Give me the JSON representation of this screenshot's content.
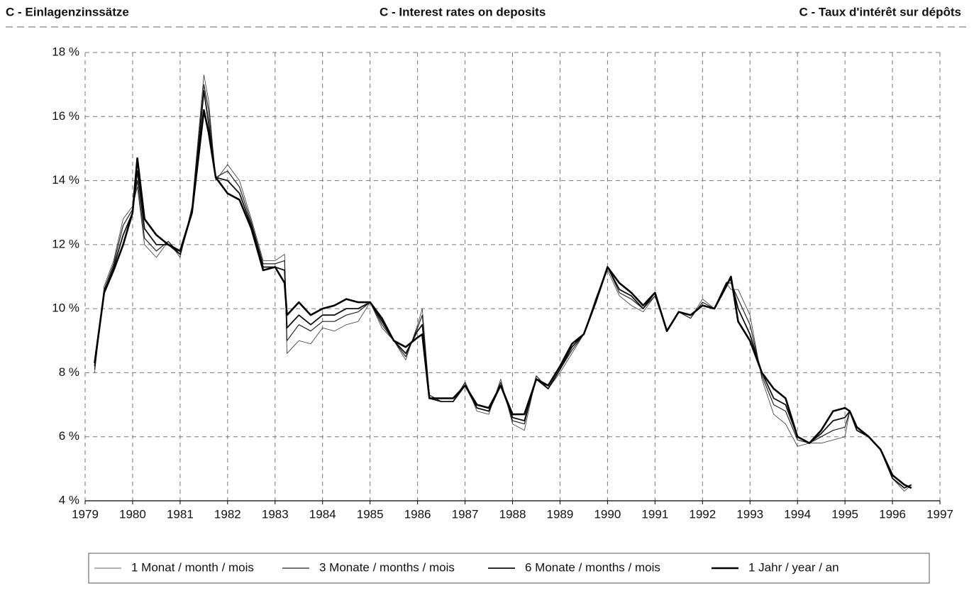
{
  "chart_data": {
    "type": "line",
    "titles": [
      "C - Einlagenzinssätze",
      "C - Interest rates on deposits",
      "C - Taux d'intérêt sur dépôts"
    ],
    "x": [
      1979.2,
      1979.4,
      1979.6,
      1979.8,
      1980.0,
      1980.1,
      1980.25,
      1980.5,
      1980.75,
      1981.0,
      1981.25,
      1981.5,
      1981.6,
      1981.75,
      1982.0,
      1982.25,
      1982.5,
      1982.75,
      1983.0,
      1983.2,
      1983.25,
      1983.5,
      1983.75,
      1984.0,
      1984.25,
      1984.5,
      1984.75,
      1985.0,
      1985.25,
      1985.5,
      1985.75,
      1986.0,
      1986.1,
      1986.25,
      1986.5,
      1986.75,
      1987.0,
      1987.25,
      1987.5,
      1987.75,
      1988.0,
      1988.25,
      1988.5,
      1988.75,
      1989.0,
      1989.25,
      1989.5,
      1989.75,
      1990.0,
      1990.25,
      1990.5,
      1990.75,
      1991.0,
      1991.25,
      1991.5,
      1991.75,
      1992.0,
      1992.25,
      1992.5,
      1992.6,
      1992.75,
      1993.0,
      1993.25,
      1993.5,
      1993.75,
      1994.0,
      1994.25,
      1994.5,
      1994.75,
      1995.0,
      1995.1,
      1995.25,
      1995.5,
      1995.75,
      1996.0,
      1996.25,
      1996.4
    ],
    "series": [
      {
        "name": "1 Monat / month / mois",
        "color": "#333333",
        "values": [
          8.0,
          10.7,
          11.5,
          12.8,
          13.2,
          13.8,
          12.0,
          11.6,
          12.1,
          11.6,
          13.2,
          17.3,
          16.5,
          14.0,
          14.5,
          14.0,
          12.8,
          11.5,
          11.5,
          11.7,
          8.6,
          9.0,
          8.9,
          9.4,
          9.3,
          9.5,
          9.6,
          10.2,
          9.4,
          9.0,
          8.4,
          9.5,
          10.0,
          7.3,
          7.1,
          7.1,
          7.7,
          6.8,
          6.7,
          7.8,
          6.4,
          6.2,
          7.9,
          7.5,
          8.0,
          8.6,
          9.2,
          10.3,
          11.2,
          10.4,
          10.1,
          9.9,
          10.4,
          9.3,
          9.9,
          9.7,
          10.3,
          10.0,
          10.8,
          10.6,
          10.6,
          9.8,
          7.8,
          6.7,
          6.4,
          5.7,
          5.8,
          5.8,
          5.9,
          6.0,
          6.8,
          6.2,
          6.0,
          5.6,
          4.7,
          4.3,
          4.5
        ]
      },
      {
        "name": "3 Monate / months / mois",
        "color": "#222222",
        "values": [
          8.1,
          10.6,
          11.4,
          12.6,
          13.1,
          14.0,
          12.2,
          11.8,
          12.1,
          11.7,
          13.1,
          17.0,
          16.2,
          14.1,
          14.3,
          13.8,
          12.7,
          11.4,
          11.4,
          11.5,
          9.0,
          9.5,
          9.3,
          9.6,
          9.6,
          9.8,
          9.9,
          10.2,
          9.5,
          9.0,
          8.5,
          9.4,
          9.8,
          7.3,
          7.1,
          7.1,
          7.7,
          6.9,
          6.8,
          7.7,
          6.5,
          6.4,
          7.9,
          7.5,
          8.1,
          8.7,
          9.2,
          10.3,
          11.3,
          10.5,
          10.3,
          10.0,
          10.4,
          9.3,
          9.9,
          9.7,
          10.2,
          10.0,
          10.8,
          10.8,
          10.3,
          9.5,
          7.9,
          7.0,
          6.8,
          5.9,
          5.8,
          6.0,
          6.2,
          6.3,
          6.8,
          6.2,
          6.0,
          5.6,
          4.7,
          4.4,
          4.5
        ]
      },
      {
        "name": "6 Monate / months / mois",
        "color": "#111111",
        "values": [
          8.2,
          10.5,
          11.3,
          12.3,
          13.0,
          14.3,
          12.5,
          12.0,
          12.0,
          11.7,
          13.0,
          16.8,
          15.8,
          14.1,
          14.0,
          13.6,
          12.6,
          11.3,
          11.3,
          11.2,
          9.4,
          9.8,
          9.5,
          9.8,
          9.8,
          10.0,
          10.0,
          10.2,
          9.6,
          9.0,
          8.6,
          9.3,
          9.5,
          7.2,
          7.1,
          7.1,
          7.6,
          6.9,
          6.8,
          7.6,
          6.6,
          6.5,
          7.8,
          7.5,
          8.1,
          8.8,
          9.2,
          10.2,
          11.3,
          10.6,
          10.4,
          10.0,
          10.5,
          9.3,
          9.9,
          9.8,
          10.1,
          10.0,
          10.8,
          10.9,
          10.0,
          9.2,
          8.0,
          7.2,
          7.0,
          6.0,
          5.8,
          6.1,
          6.5,
          6.6,
          6.8,
          6.2,
          6.0,
          5.6,
          4.7,
          4.4,
          4.5
        ]
      },
      {
        "name": "1 Jahr / year / an",
        "color": "#000000",
        "values": [
          8.3,
          10.5,
          11.2,
          12.0,
          13.0,
          14.7,
          12.8,
          12.3,
          12.0,
          11.8,
          13.0,
          16.2,
          15.5,
          14.1,
          13.6,
          13.4,
          12.5,
          11.2,
          11.3,
          10.8,
          9.8,
          10.2,
          9.8,
          10.0,
          10.1,
          10.3,
          10.2,
          10.2,
          9.7,
          9.0,
          8.8,
          9.1,
          9.2,
          7.2,
          7.2,
          7.2,
          7.6,
          7.0,
          6.9,
          7.6,
          6.7,
          6.7,
          7.8,
          7.6,
          8.2,
          8.9,
          9.2,
          10.2,
          11.3,
          10.8,
          10.5,
          10.1,
          10.5,
          9.3,
          9.9,
          9.8,
          10.1,
          10.0,
          10.7,
          11.0,
          9.6,
          9.0,
          8.0,
          7.5,
          7.2,
          6.0,
          5.8,
          6.2,
          6.8,
          6.9,
          6.8,
          6.3,
          6.0,
          5.6,
          4.8,
          4.5,
          4.4
        ]
      }
    ],
    "xlim": [
      1979,
      1997
    ],
    "xticks": [
      1979,
      1980,
      1981,
      1982,
      1983,
      1984,
      1985,
      1986,
      1987,
      1988,
      1989,
      1990,
      1991,
      1992,
      1993,
      1994,
      1995,
      1996,
      1997
    ],
    "ylim": [
      4,
      18
    ],
    "yticks": [
      {
        "value": 4,
        "label": "4 %"
      },
      {
        "value": 6,
        "label": "6 %"
      },
      {
        "value": 8,
        "label": "8 %"
      },
      {
        "value": 10,
        "label": "10 %"
      },
      {
        "value": 12,
        "label": "12 %"
      },
      {
        "value": 14,
        "label": "14 %"
      },
      {
        "value": 16,
        "label": "16 %"
      },
      {
        "value": 18,
        "label": "18 %"
      }
    ],
    "grid": true,
    "legend": "bottom"
  }
}
